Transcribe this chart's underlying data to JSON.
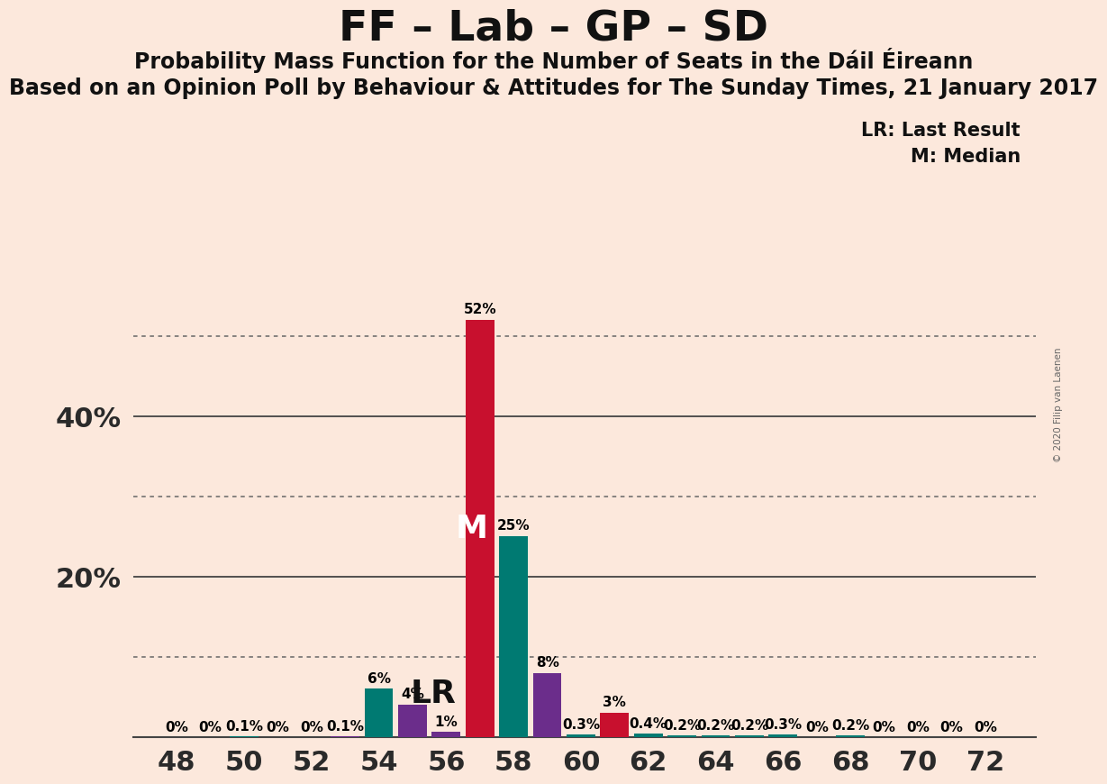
{
  "title": "FF – Lab – GP – SD",
  "subtitle1": "Probability Mass Function for the Number of Seats in the Dáil Éireann",
  "subtitle2": "Based on an Opinion Poll by Behaviour & Attitudes for The Sunday Times, 21 January 2017",
  "copyright": "© 2020 Filip van Laenen",
  "legend_lr": "LR: Last Result",
  "legend_m": "M: Median",
  "background_color": "#fce8dc",
  "seats": [
    48,
    49,
    50,
    51,
    52,
    53,
    54,
    55,
    56,
    57,
    58,
    59,
    60,
    61,
    62,
    63,
    64,
    65,
    66,
    67,
    68,
    69,
    70,
    71,
    72
  ],
  "teal_values": [
    0.0,
    0.0,
    0.1,
    0.0,
    0.0,
    0.1,
    6.0,
    0.1,
    0.0,
    0.0,
    25.0,
    0.0,
    0.3,
    0.0,
    0.4,
    0.2,
    0.2,
    0.2,
    0.3,
    0.0,
    0.2,
    0.0,
    0.0,
    0.0,
    0.0
  ],
  "purple_values": [
    0.0,
    0.0,
    0.0,
    0.0,
    0.0,
    0.1,
    0.0,
    4.0,
    0.6,
    0.0,
    0.0,
    8.0,
    0.0,
    0.0,
    0.0,
    0.0,
    0.0,
    0.0,
    0.0,
    0.0,
    0.0,
    0.0,
    0.0,
    0.0,
    0.0
  ],
  "red_values": [
    0.0,
    0.0,
    0.0,
    0.0,
    0.0,
    0.0,
    0.0,
    0.0,
    0.0,
    52.0,
    0.0,
    0.0,
    0.0,
    3.0,
    0.0,
    0.0,
    0.0,
    0.0,
    0.0,
    0.0,
    0.0,
    0.0,
    0.0,
    0.0,
    0.0
  ],
  "green_values": [
    0.0,
    0.0,
    0.0,
    0.0,
    0.0,
    0.0,
    0.0,
    0.0,
    0.2,
    0.0,
    0.1,
    0.0,
    0.0,
    0.0,
    0.0,
    0.0,
    0.0,
    0.0,
    0.0,
    0.0,
    0.0,
    0.0,
    0.0,
    0.0,
    0.0
  ],
  "teal_color": "#007A72",
  "purple_color": "#6B2D8B",
  "red_color": "#C8102E",
  "green_color": "#2d6a2d",
  "ylim": [
    0,
    55
  ],
  "xtick_seats": [
    48,
    50,
    52,
    54,
    56,
    58,
    60,
    62,
    64,
    66,
    68,
    70,
    72
  ],
  "bar_width": 0.85,
  "solid_lines": [
    20,
    40
  ],
  "dotted_lines": [
    10,
    30,
    50
  ]
}
